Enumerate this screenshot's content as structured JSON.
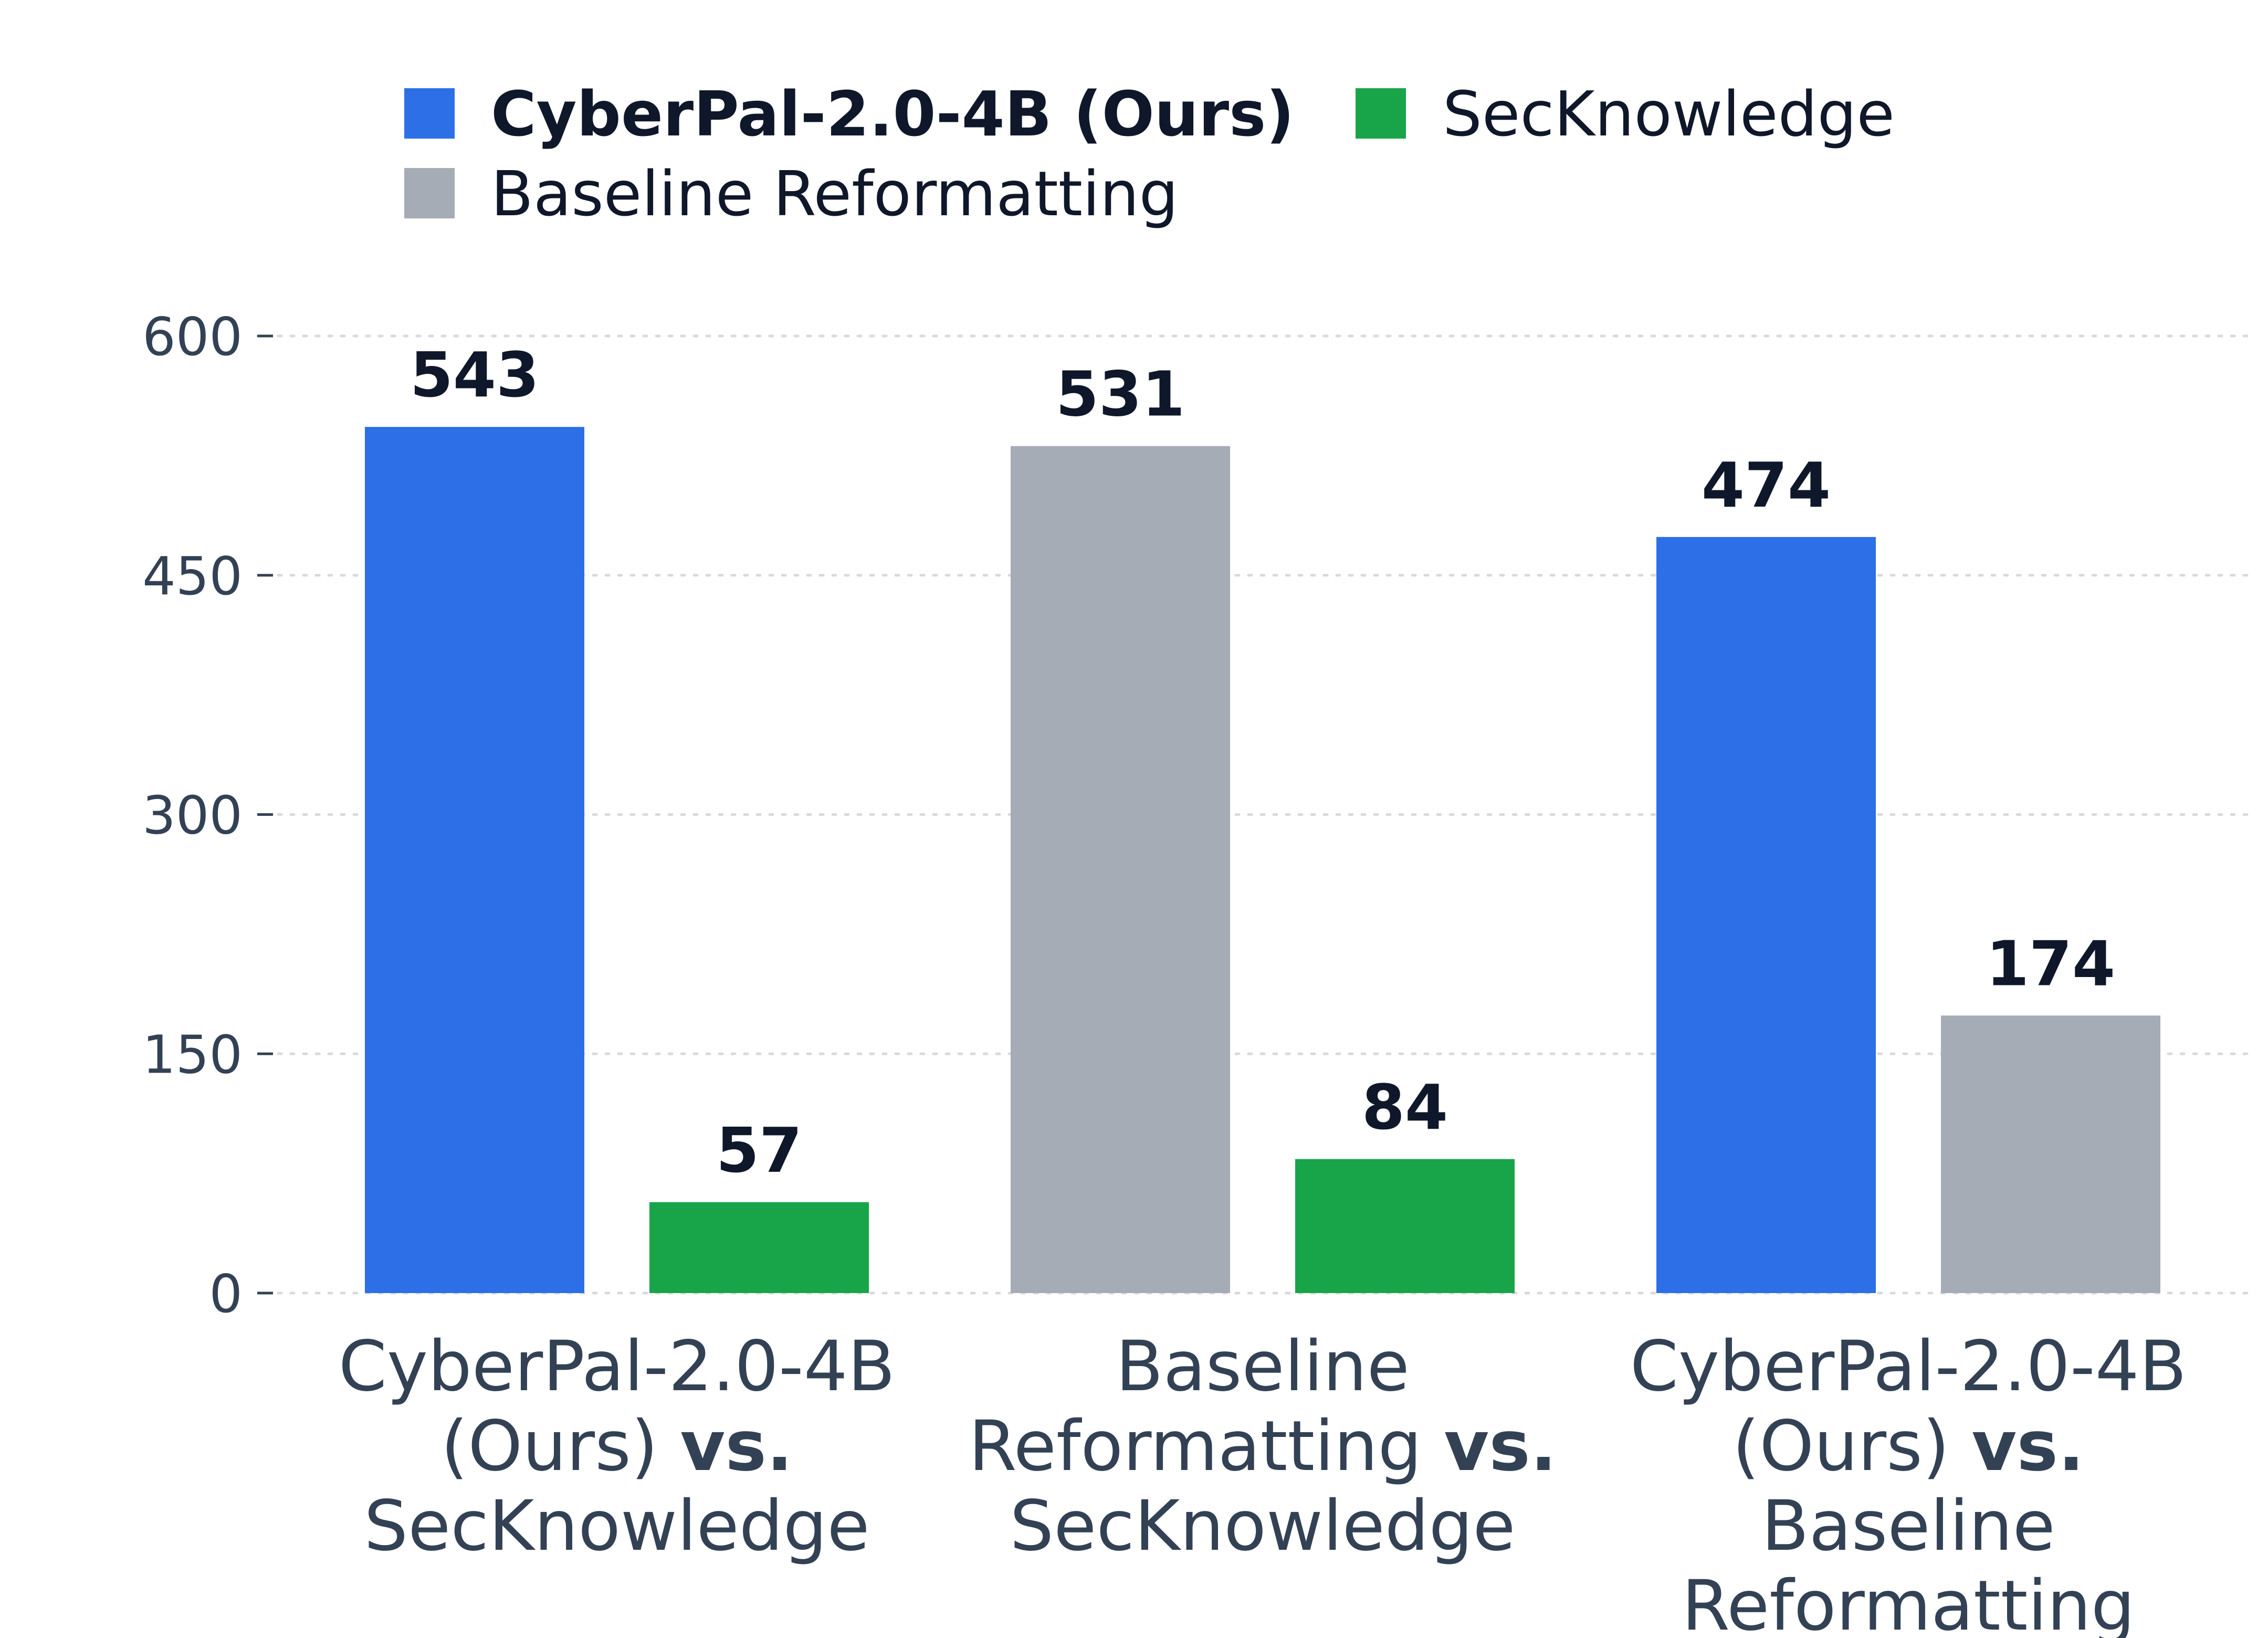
{
  "chart_data": {
    "type": "bar",
    "ylim": [
      0,
      600
    ],
    "yticks": [
      0,
      150,
      300,
      450,
      600
    ],
    "grid": true,
    "legend_position": "top",
    "series": [
      {
        "name": "CyberPal-2.0-4B (Ours)",
        "color": "#2c6fe6",
        "bold": true
      },
      {
        "name": "SecKnowledge",
        "color": "#18a54a",
        "bold": false
      },
      {
        "name": "Baseline Reformatting",
        "color": "#a6acb5",
        "bold": false
      }
    ],
    "groups": [
      {
        "label_lines": [
          [
            {
              "text": "CyberPal-2.0-4B",
              "bold": false
            }
          ],
          [
            {
              "text": "(Ours) ",
              "bold": false
            },
            {
              "text": "vs.",
              "bold": true
            }
          ],
          [
            {
              "text": "SecKnowledge",
              "bold": false
            }
          ]
        ],
        "bars": [
          {
            "series": "CyberPal-2.0-4B (Ours)",
            "value": 543
          },
          {
            "series": "SecKnowledge",
            "value": 57
          }
        ]
      },
      {
        "label_lines": [
          [
            {
              "text": "Baseline",
              "bold": false
            }
          ],
          [
            {
              "text": "Reformatting ",
              "bold": false
            },
            {
              "text": "vs.",
              "bold": true
            }
          ],
          [
            {
              "text": "SecKnowledge",
              "bold": false
            }
          ]
        ],
        "bars": [
          {
            "series": "Baseline Reformatting",
            "value": 531
          },
          {
            "series": "SecKnowledge",
            "value": 84
          }
        ]
      },
      {
        "label_lines": [
          [
            {
              "text": "CyberPal-2.0-4B",
              "bold": false
            }
          ],
          [
            {
              "text": "(Ours) ",
              "bold": false
            },
            {
              "text": "vs.",
              "bold": true
            }
          ],
          [
            {
              "text": "Baseline",
              "bold": false
            }
          ],
          [
            {
              "text": "Reformatting",
              "bold": false
            }
          ]
        ],
        "bars": [
          {
            "series": "CyberPal-2.0-4B (Ours)",
            "value": 474
          },
          {
            "series": "Baseline Reformatting",
            "value": 174
          }
        ]
      }
    ]
  }
}
